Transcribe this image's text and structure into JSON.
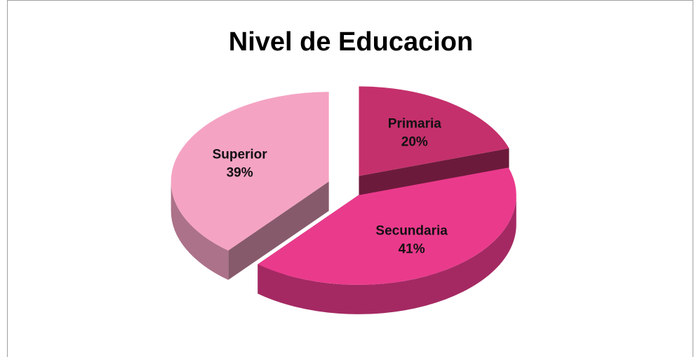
{
  "chart_data": {
    "type": "pie3d",
    "title": "Nivel de Educacion",
    "categories": [
      "Primaria",
      "Secundaria",
      "Superior"
    ],
    "values": [
      20,
      41,
      39
    ],
    "value_labels": [
      "20%",
      "41%",
      "39%"
    ],
    "colors": [
      "#c4306c",
      "#ea3a8c",
      "#f5a3c3"
    ]
  }
}
